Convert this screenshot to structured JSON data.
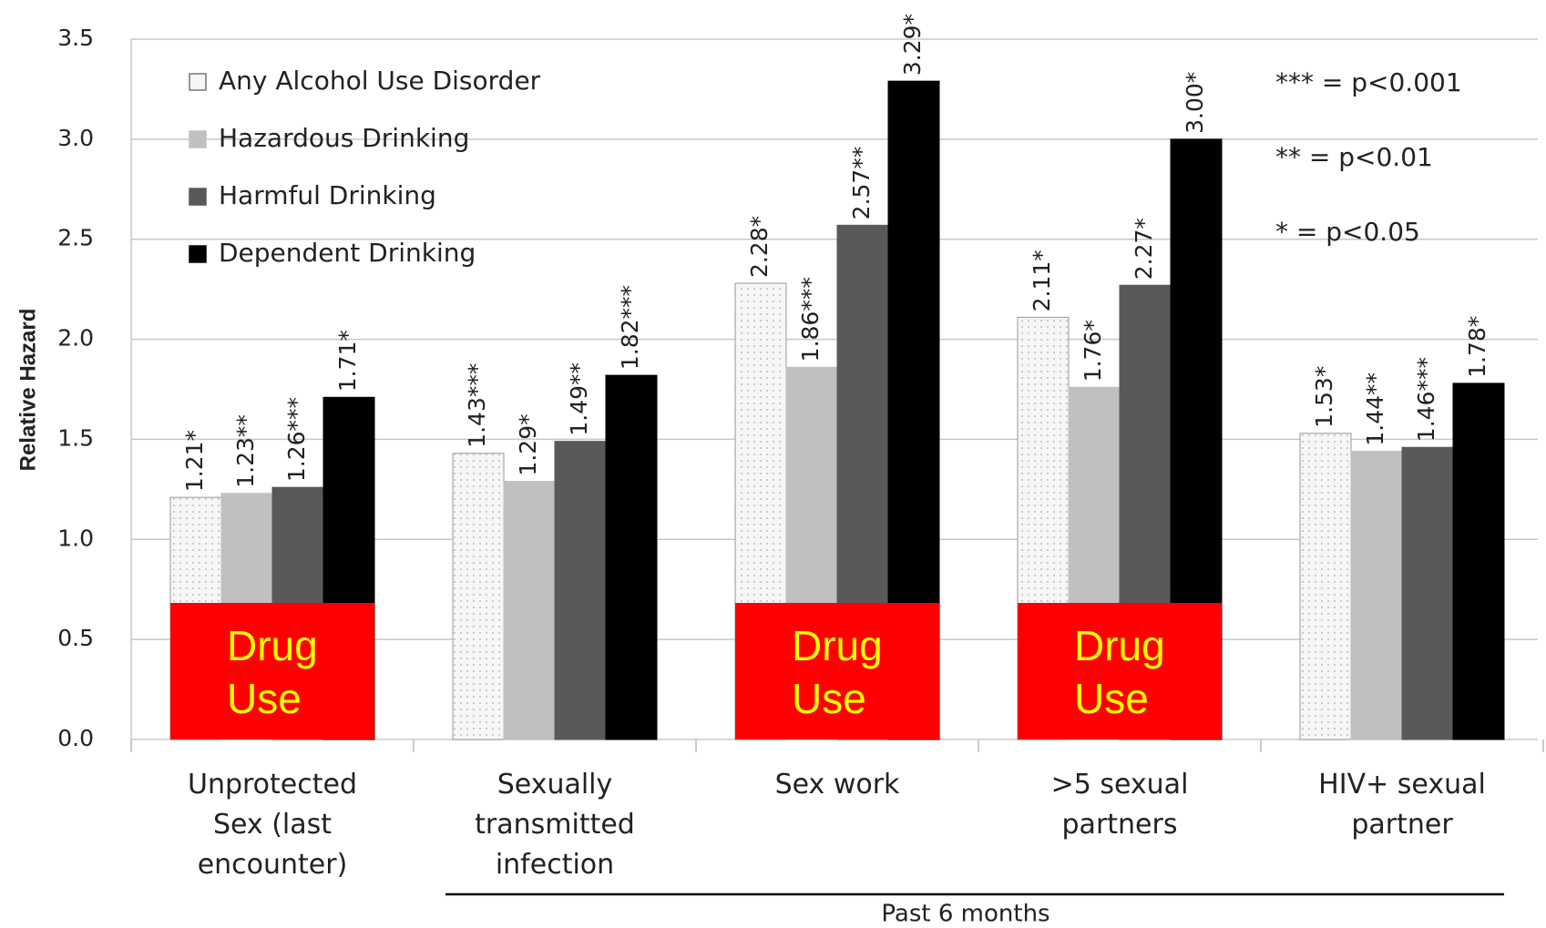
{
  "chart_data": {
    "type": "bar",
    "y_label": "Relative Hazard",
    "categories": [
      "Unprotected Sex (last encounter)",
      "Sexually transmitted infection",
      "Sex work",
      ">5 sexual partners",
      "HIV+ sexual partner"
    ],
    "series": [
      {
        "name": "Any Alcohol Use Disorder",
        "color": "#f6f6f6",
        "pattern": "dots",
        "values": [
          1.21,
          1.43,
          2.28,
          2.11,
          1.53
        ],
        "value_labels": [
          "1.21*",
          "1.43***",
          "2.28*",
          "2.11*",
          "1.53*"
        ]
      },
      {
        "name": "Hazardous Drinking",
        "color": "#c0c0c0",
        "values": [
          1.23,
          1.29,
          1.86,
          1.76,
          1.44
        ],
        "value_labels": [
          "1.23**",
          "1.29*",
          "1.86***",
          "1.76*",
          "1.44**"
        ]
      },
      {
        "name": "Harmful Drinking",
        "color": "#595959",
        "values": [
          1.26,
          1.49,
          2.57,
          2.27,
          1.46
        ],
        "value_labels": [
          "1.26***",
          "1.49**",
          "2.57**",
          "2.27*",
          "1.46***"
        ]
      },
      {
        "name": "Dependent Drinking",
        "color": "#000000",
        "values": [
          1.71,
          1.82,
          3.29,
          3.0,
          1.78
        ],
        "value_labels": [
          "1.71*",
          "1.82***",
          "3.29*",
          "3.00*",
          "1.78*"
        ]
      }
    ],
    "ylim": [
      0,
      3.5
    ],
    "yticks": [
      {
        "value": 0,
        "label": "0.0"
      },
      0.5,
      {
        "value": 1,
        "label": "1.0"
      },
      1.5,
      {
        "value": 2,
        "label": "2.0"
      },
      2.5,
      {
        "value": 3,
        "label": "3.0"
      },
      3.5
    ],
    "grid": true,
    "legend": "top-left",
    "notes": [
      "*** = p<0.001",
      "** = p<0.01",
      "* = p<0.05"
    ],
    "annotations": [
      {
        "text": "Drug Use",
        "category": "Unprotected Sex (last encounter)"
      },
      {
        "text": "Drug Use",
        "category": "Sex work"
      },
      {
        "text": "Drug Use",
        "category": ">5 sexual partners"
      }
    ],
    "group": {
      "label": "Past 6 months",
      "start": "Sexually transmitted infection",
      "end": "HIV+ sexual partner"
    }
  }
}
